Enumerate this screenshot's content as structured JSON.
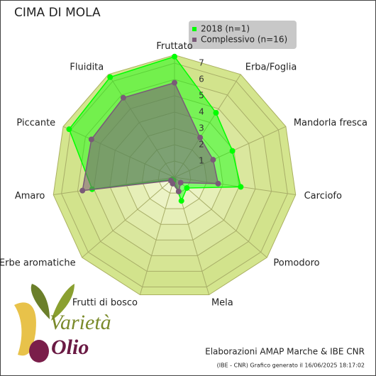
{
  "chart_data": {
    "type": "radar",
    "title": "CIMA DI MOLA",
    "categories": [
      "Fruttato",
      "Erba/Foglia",
      "Mandorla fresca",
      "Carciofo",
      "Pomodoro",
      "Mela",
      "Frutti di bosco",
      "Erbe aromatiche",
      "Amaro",
      "Piccante",
      "Fluidita"
    ],
    "series": [
      {
        "name": "2018 (n=1)",
        "color": "#00ff00",
        "values": [
          7.4,
          4.7,
          3.9,
          4.1,
          1.0,
          1.5,
          0.2,
          0.2,
          5.1,
          7.1,
          7.3
        ]
      },
      {
        "name": "Complessivo (n=16)",
        "color": "#7a5a78",
        "values": [
          5.8,
          2.9,
          2.6,
          2.7,
          0.5,
          0.9,
          0.4,
          0.3,
          5.7,
          5.6,
          5.8
        ]
      }
    ],
    "rlim": [
      0,
      7.5
    ],
    "rticks": [
      1,
      2,
      3,
      4,
      5,
      6,
      7
    ],
    "legend": "top-right",
    "footer": "Elaborazioni AMAP Marche & IBE CNR",
    "credit": "(IBE - CNR) Grafico generato il 16/06/2025 18:17:02"
  },
  "logo": {
    "top": "Varietà",
    "bottom": "Olio"
  }
}
